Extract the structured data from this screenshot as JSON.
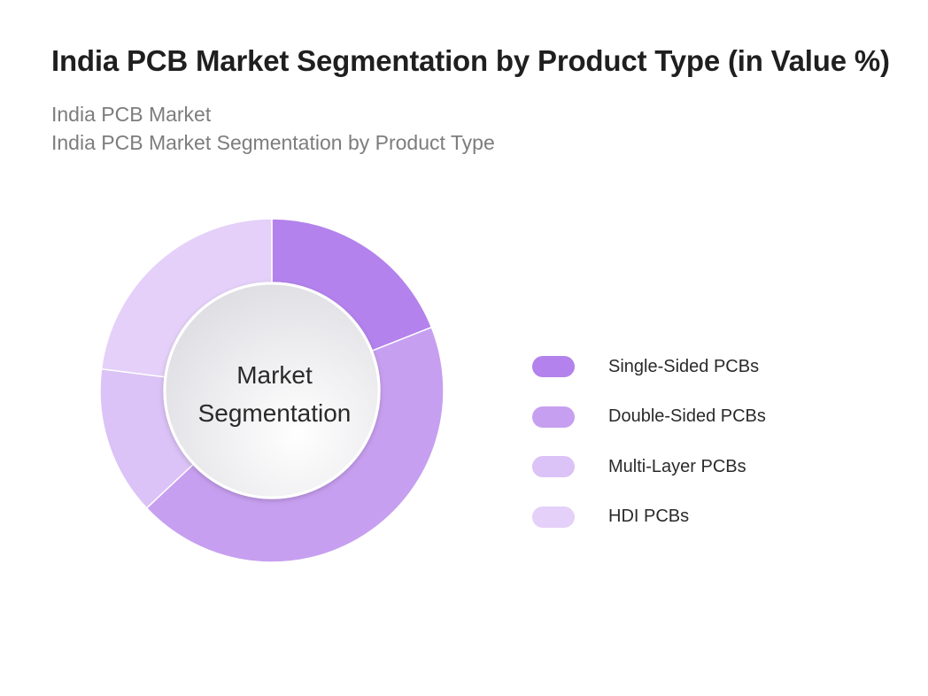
{
  "title": "India PCB Market Segmentation by Product Type (in Value %)",
  "subtitles": [
    "India PCB Market",
    "India PCB Market Segmentation by Product Type"
  ],
  "chart_data": {
    "type": "pie",
    "donut": true,
    "center_label": [
      "Market",
      "Segmentation"
    ],
    "legend_position": "right",
    "slices": [
      {
        "label": "Single-Sided PCBs",
        "value": 19,
        "color": "#b382ec"
      },
      {
        "label": "Double-Sided PCBs",
        "value": 44,
        "color": "#c79ff0"
      },
      {
        "label": "Multi-Layer PCBs",
        "value": 14,
        "color": "#dbc2f7"
      },
      {
        "label": "HDI PCBs",
        "value": 23,
        "color": "#e4d0f8"
      }
    ]
  }
}
